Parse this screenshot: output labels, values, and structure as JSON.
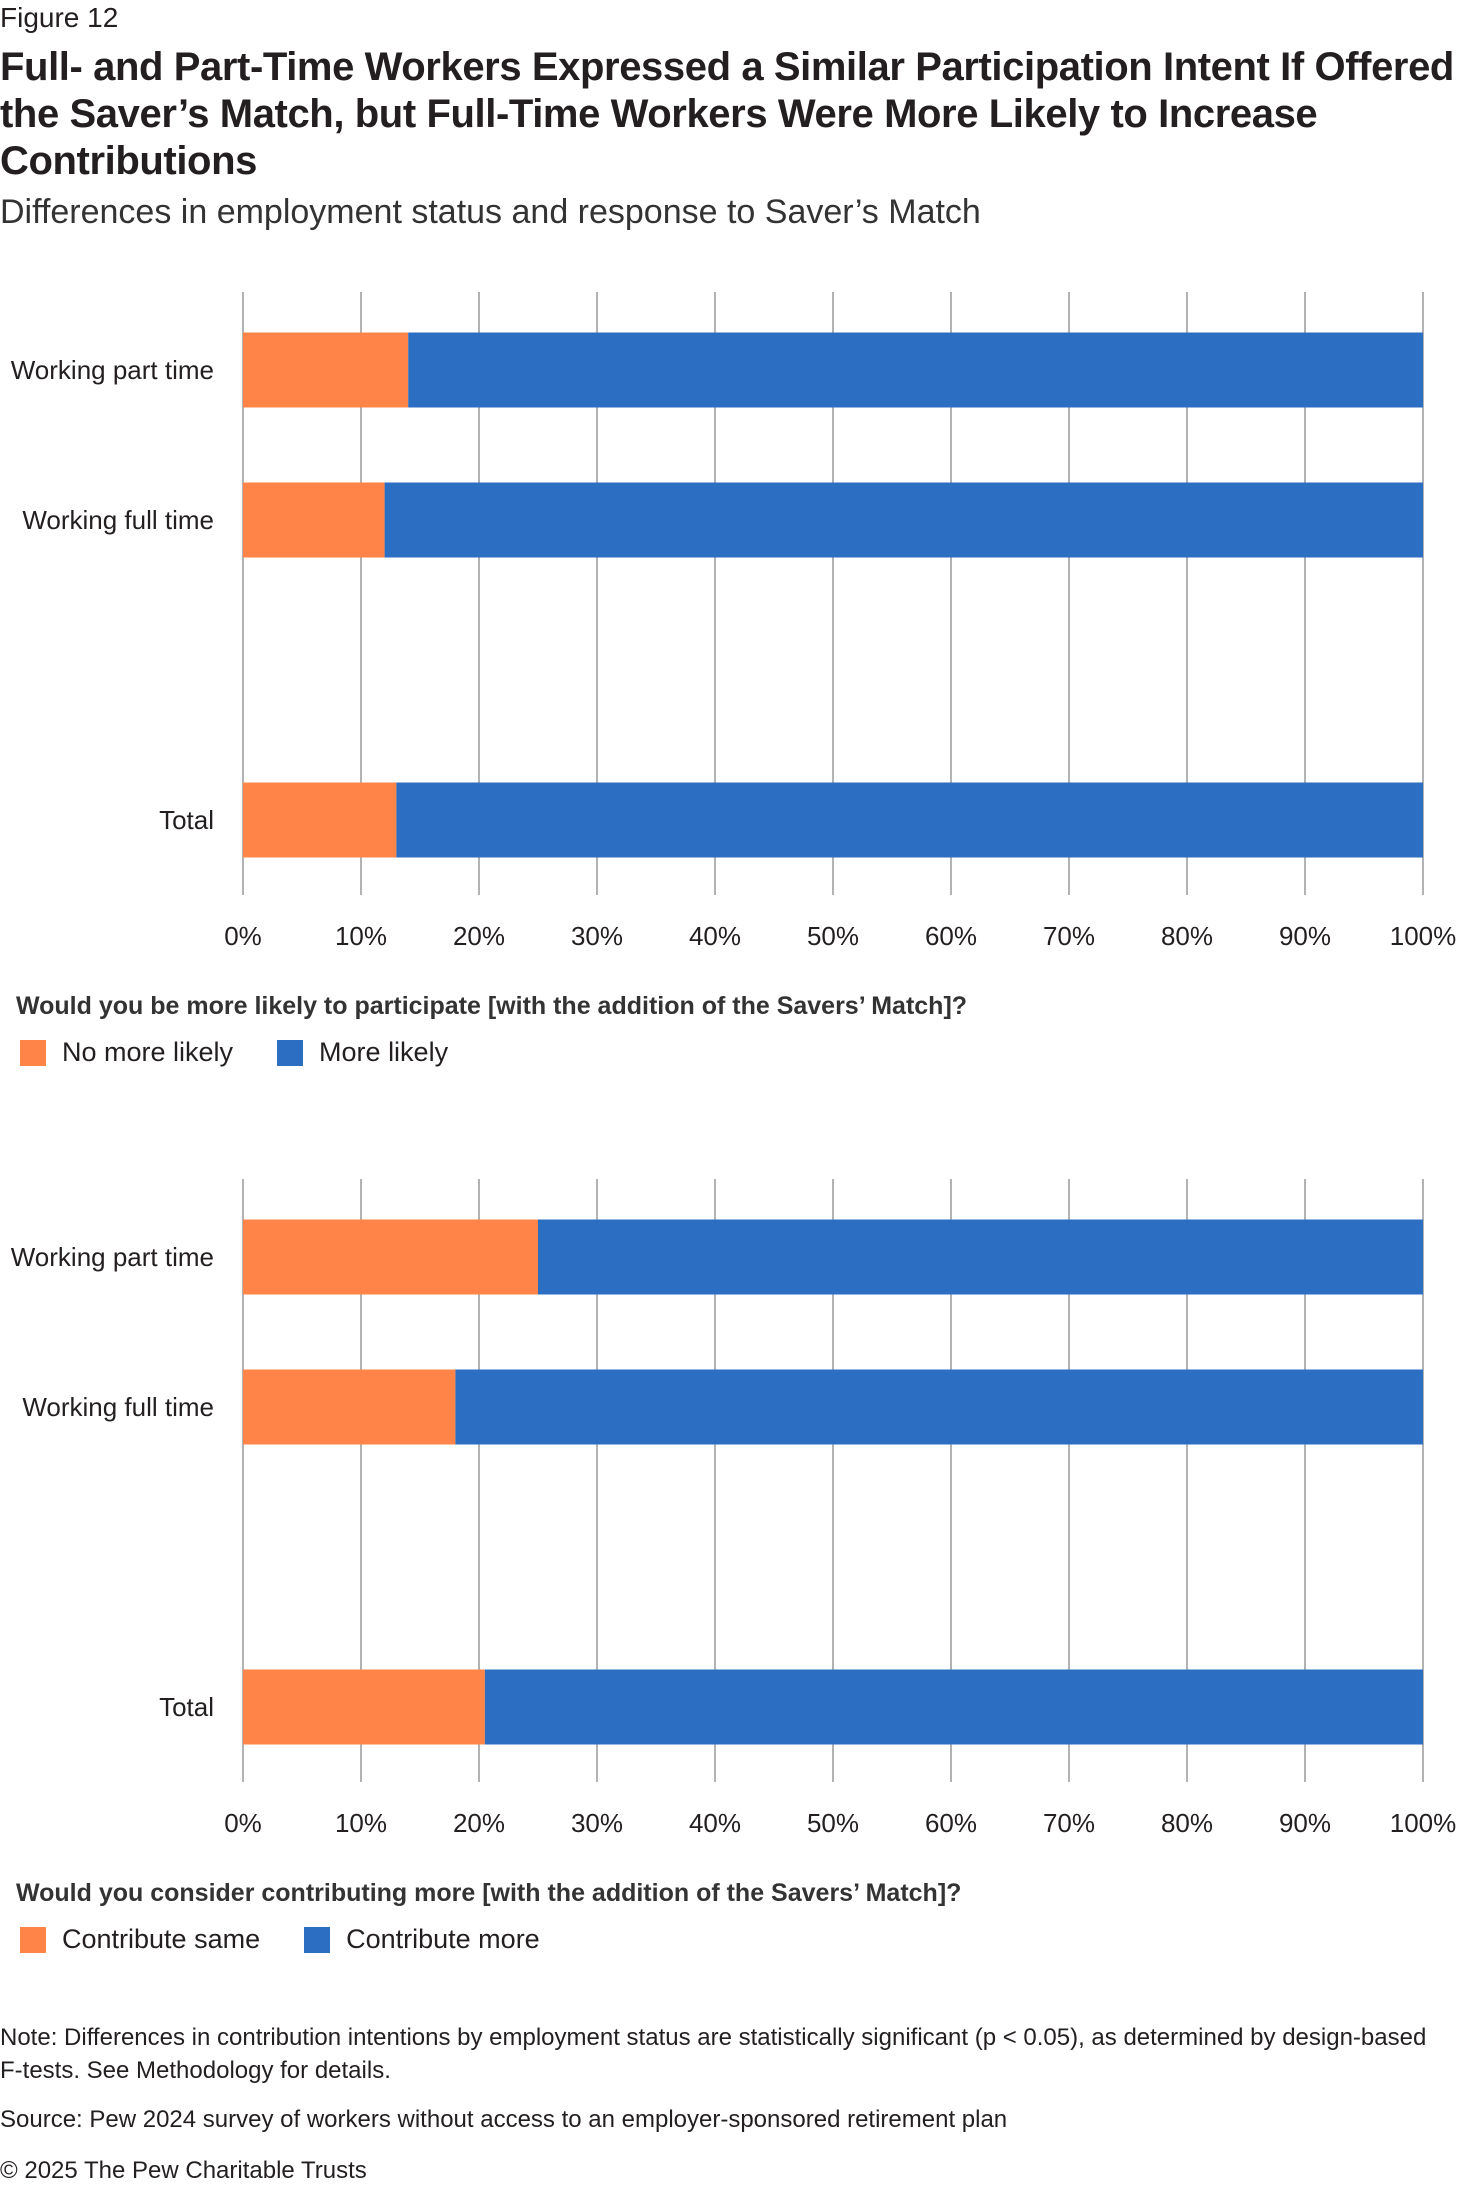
{
  "figure_label": "Figure 12",
  "title": "Full- and Part-Time Workers Expressed a Similar Participation Intent If Offered the Saver’s Match, but Full-Time Workers Were More Likely to Increase Contributions",
  "subtitle": "Differences in employment status and response to Saver’s Match",
  "colors": {
    "orange": "#ff8447",
    "blue": "#2b6ec2",
    "grid": "#999999"
  },
  "chart_data": [
    {
      "type": "bar",
      "orientation": "horizontal",
      "stacked": true,
      "question": "Would you be more likely to participate [with the addition of the Savers’ Match]?",
      "categories": [
        "Working part time",
        "Working full time",
        "Total"
      ],
      "series": [
        {
          "name": "No more likely",
          "color": "#ff8447",
          "values": [
            14,
            12,
            13
          ]
        },
        {
          "name": "More likely",
          "color": "#2b6ec2",
          "values": [
            86,
            88,
            87
          ]
        }
      ],
      "xlim": [
        0,
        100
      ],
      "xticks": [
        "0%",
        "10%",
        "20%",
        "30%",
        "40%",
        "50%",
        "60%",
        "70%",
        "80%",
        "90%",
        "100%"
      ],
      "grid": "vertical",
      "legend": "bottom-left"
    },
    {
      "type": "bar",
      "orientation": "horizontal",
      "stacked": true,
      "question": "Would you consider contributing more [with the addition of the Savers’ Match]?",
      "categories": [
        "Working part time",
        "Working full time",
        "Total"
      ],
      "series": [
        {
          "name": "Contribute same",
          "color": "#ff8447",
          "values": [
            25,
            18,
            20.5
          ]
        },
        {
          "name": "Contribute more",
          "color": "#2b6ec2",
          "values": [
            75,
            82,
            79.5
          ]
        }
      ],
      "xlim": [
        0,
        100
      ],
      "xticks": [
        "0%",
        "10%",
        "20%",
        "30%",
        "40%",
        "50%",
        "60%",
        "70%",
        "80%",
        "90%",
        "100%"
      ],
      "grid": "vertical",
      "legend": "bottom-left"
    }
  ],
  "note": "Note: Differences in contribution intentions by employment status are statistically significant (p < 0.05), as determined by design-based F-tests. See Methodology for details.",
  "source": "Source: Pew 2024 survey of workers without access to an employer-sponsored retirement plan",
  "copyright": "© 2025 The Pew Charitable Trusts"
}
